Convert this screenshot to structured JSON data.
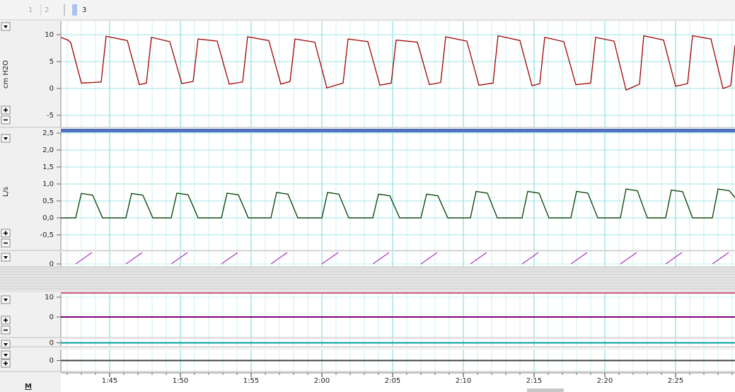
{
  "tabs": [
    "1",
    "2",
    "3"
  ],
  "footer_label": "M",
  "chart_data": [
    {
      "type": "line",
      "ylabel": "cm H2O",
      "xlim": [
        101.55,
        149.2
      ],
      "ylim": [
        -7.24,
        12.5
      ],
      "yticks": [
        10,
        5,
        0,
        -5
      ],
      "x": [
        101.55,
        102.05,
        102.25,
        103.0,
        104.4,
        104.75,
        106.25,
        107.1,
        107.6,
        107.95,
        109.25,
        110.1,
        110.9,
        111.25,
        112.6,
        113.45,
        114.4,
        114.75,
        116.25,
        117.1,
        117.75,
        118.1,
        119.5,
        120.35,
        121.5,
        121.85,
        123.25,
        124.1,
        124.9,
        125.25,
        126.75,
        127.6,
        128.4,
        128.75,
        130.25,
        131.1,
        132.1,
        132.45,
        134.0,
        134.85,
        135.4,
        135.75,
        137.1,
        137.95,
        139.0,
        139.35,
        140.65,
        141.5,
        142.45,
        142.75,
        144.15,
        145.0,
        145.85,
        146.2,
        147.5,
        148.35,
        148.9,
        149.2
      ],
      "series": [
        {
          "color": "#a00000",
          "values": [
            9.5,
            9.0,
            8.5,
            1.0,
            1.2,
            9.7,
            8.9,
            0.7,
            1.0,
            9.5,
            8.7,
            0.9,
            1.3,
            9.2,
            8.8,
            0.8,
            1.2,
            9.6,
            8.9,
            0.8,
            1.3,
            9.2,
            8.6,
            0.1,
            1.0,
            9.2,
            8.7,
            0.6,
            1.0,
            9.0,
            8.6,
            0.7,
            1.1,
            9.6,
            8.8,
            0.6,
            1.0,
            9.8,
            8.9,
            0.5,
            0.9,
            9.5,
            8.7,
            0.7,
            1.0,
            9.5,
            8.8,
            -0.3,
            0.8,
            9.8,
            9.0,
            0.4,
            0.9,
            9.8,
            9.2,
            0.0,
            0.5,
            8.0
          ]
        }
      ]
    },
    {
      "type": "line",
      "ylabel": "L/s",
      "xlim": [
        101.55,
        149.2
      ],
      "ylim": [
        -0.96,
        2.5
      ],
      "yticks": [
        {
          "value": 2.5,
          "label": "2,5"
        },
        {
          "value": 2.0,
          "label": "2,0"
        },
        {
          "value": 1.5,
          "label": "1,5"
        },
        {
          "value": 1.0,
          "label": "1,0"
        },
        {
          "value": 0.5,
          "label": "0,5"
        },
        {
          "value": 0,
          "label": "0,0"
        },
        {
          "value": -0.5,
          "label": "-0,5"
        }
      ],
      "x": [
        101.55,
        102.6,
        103.0,
        103.8,
        104.5,
        106.15,
        106.55,
        107.35,
        108.05,
        109.35,
        109.75,
        110.55,
        111.25,
        112.9,
        113.3,
        114.1,
        114.8,
        116.4,
        116.8,
        117.6,
        118.3,
        120.0,
        120.4,
        121.2,
        121.9,
        123.6,
        124.0,
        124.8,
        125.5,
        127.0,
        127.4,
        128.2,
        128.9,
        130.5,
        130.9,
        131.7,
        132.4,
        134.15,
        134.55,
        135.35,
        136.05,
        137.6,
        138.0,
        138.8,
        139.5,
        141.1,
        141.5,
        142.3,
        143.0,
        144.3,
        144.7,
        145.5,
        146.2,
        147.6,
        148.0,
        148.8,
        149.2
      ],
      "series": [
        {
          "color": "#004000",
          "values": [
            0,
            0,
            0.72,
            0.67,
            0,
            0,
            0.72,
            0.67,
            0,
            0,
            0.73,
            0.68,
            0,
            0,
            0.73,
            0.68,
            0,
            0,
            0.75,
            0.7,
            0,
            0,
            0.75,
            0.7,
            0,
            0,
            0.7,
            0.65,
            0,
            0,
            0.7,
            0.65,
            0,
            0,
            0.78,
            0.73,
            0,
            0,
            0.78,
            0.73,
            0,
            0,
            0.78,
            0.73,
            0,
            0,
            0.85,
            0.8,
            0,
            0,
            0.82,
            0.77,
            0,
            0,
            0.85,
            0.8,
            0.6
          ]
        }
      ]
    },
    {
      "type": "line",
      "xlim": [
        101.55,
        149.2
      ],
      "ylim": [
        -0.25,
        1.06
      ],
      "yticks": [
        0
      ],
      "x": [
        102.6,
        103.75,
        103.75,
        106.15,
        107.3,
        107.3,
        109.35,
        110.5,
        110.5,
        112.9,
        114.05,
        114.05,
        116.4,
        117.55,
        117.55,
        120.0,
        121.15,
        121.15,
        123.6,
        124.75,
        124.75,
        127.0,
        128.15,
        128.15,
        130.5,
        131.65,
        131.65,
        134.15,
        135.3,
        135.3,
        137.6,
        138.75,
        138.75,
        141.1,
        142.25,
        142.25,
        144.3,
        145.45,
        145.45,
        147.6,
        148.75,
        148.75
      ],
      "series": [
        {
          "color": "#b040c0",
          "values": [
            0,
            1,
            null,
            0,
            1,
            null,
            0,
            1,
            null,
            0,
            1,
            null,
            0,
            1,
            null,
            0,
            1,
            null,
            0,
            1,
            null,
            0,
            1,
            null,
            0,
            1,
            null,
            0,
            1,
            null,
            0,
            1,
            null,
            0,
            1,
            null,
            0,
            1,
            null,
            0,
            1,
            null
          ]
        }
      ]
    },
    {
      "type": "line",
      "xlim": [
        101.55,
        149.2
      ],
      "ylim": [
        -10.36,
        11.43
      ],
      "yticks": [
        10,
        0
      ],
      "x": [
        101.55,
        149.2
      ],
      "series": [
        {
          "color": "#800080",
          "values": [
            0,
            0
          ]
        }
      ]
    },
    {
      "type": "line",
      "xlim": [
        101.55,
        149.2
      ],
      "ylim": [
        -1,
        1
      ],
      "yticks": [
        0
      ],
      "x": [
        101.55,
        149.2
      ],
      "series": [
        {
          "color": "#00a0a0",
          "values": [
            0,
            0
          ]
        }
      ]
    },
    {
      "type": "line",
      "xlim": [
        101.55,
        149.2
      ],
      "ylim": [
        -1,
        1
      ],
      "yticks": [
        0
      ],
      "x": [
        101.55,
        149.2
      ],
      "series": [
        {
          "color": "#404040",
          "values": [
            0,
            0
          ]
        }
      ],
      "xticks": [
        {
          "value": 105,
          "label": "1:45"
        },
        {
          "value": 110,
          "label": "1:50"
        },
        {
          "value": 115,
          "label": "1:55"
        },
        {
          "value": 120,
          "label": "2:00"
        },
        {
          "value": 125,
          "label": "2:05"
        },
        {
          "value": 130,
          "label": "2:10"
        },
        {
          "value": 135,
          "label": "2:15"
        },
        {
          "value": 140,
          "label": "2:20"
        },
        {
          "value": 145,
          "label": "2:25"
        }
      ]
    }
  ]
}
